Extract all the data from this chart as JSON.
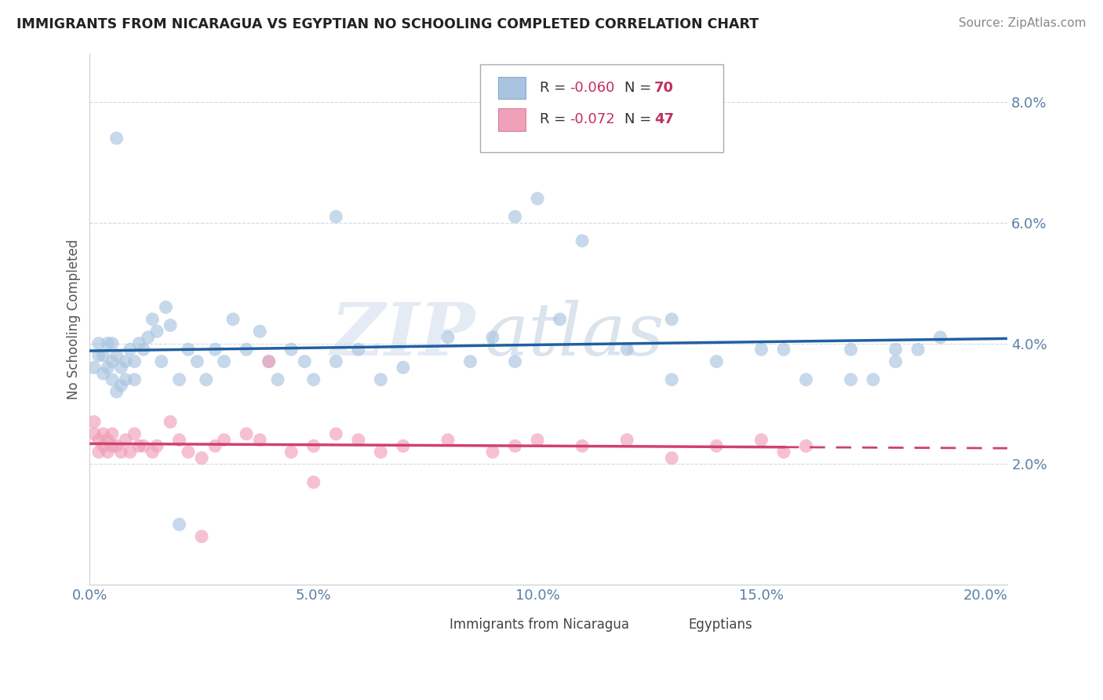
{
  "title": "IMMIGRANTS FROM NICARAGUA VS EGYPTIAN NO SCHOOLING COMPLETED CORRELATION CHART",
  "source": "Source: ZipAtlas.com",
  "ylabel": "No Schooling Completed",
  "xlim": [
    0.0,
    0.205
  ],
  "ylim": [
    0.0,
    0.088
  ],
  "xticks": [
    0.0,
    0.05,
    0.1,
    0.15,
    0.2
  ],
  "xtick_labels": [
    "0.0%",
    "5.0%",
    "10.0%",
    "15.0%",
    "20.0%"
  ],
  "yticks": [
    0.0,
    0.02,
    0.04,
    0.06,
    0.08
  ],
  "ytick_labels": [
    "",
    "2.0%",
    "4.0%",
    "6.0%",
    "8.0%"
  ],
  "nicaragua_color": "#a8c4e0",
  "nicaraguan_line_color": "#2060a0",
  "egyptian_color": "#f0a0b8",
  "egyptian_line_color": "#d04070",
  "watermark_zip": "ZIP",
  "watermark_atlas": "atlas",
  "nicaragua_x": [
    0.001,
    0.002,
    0.002,
    0.003,
    0.003,
    0.004,
    0.004,
    0.005,
    0.005,
    0.005,
    0.006,
    0.006,
    0.007,
    0.007,
    0.008,
    0.008,
    0.009,
    0.01,
    0.01,
    0.011,
    0.012,
    0.013,
    0.014,
    0.015,
    0.016,
    0.017,
    0.018,
    0.02,
    0.022,
    0.024,
    0.026,
    0.028,
    0.03,
    0.032,
    0.035,
    0.038,
    0.04,
    0.042,
    0.045,
    0.048,
    0.05,
    0.055,
    0.06,
    0.065,
    0.07,
    0.08,
    0.085,
    0.09,
    0.095,
    0.1,
    0.105,
    0.11,
    0.12,
    0.13,
    0.14,
    0.15,
    0.16,
    0.17,
    0.18,
    0.19,
    0.155,
    0.17,
    0.18,
    0.185,
    0.13,
    0.095,
    0.055,
    0.02,
    0.175,
    0.006
  ],
  "nicaragua_y": [
    0.036,
    0.038,
    0.04,
    0.035,
    0.038,
    0.04,
    0.036,
    0.034,
    0.037,
    0.04,
    0.032,
    0.038,
    0.036,
    0.033,
    0.037,
    0.034,
    0.039,
    0.037,
    0.034,
    0.04,
    0.039,
    0.041,
    0.044,
    0.042,
    0.037,
    0.046,
    0.043,
    0.034,
    0.039,
    0.037,
    0.034,
    0.039,
    0.037,
    0.044,
    0.039,
    0.042,
    0.037,
    0.034,
    0.039,
    0.037,
    0.034,
    0.037,
    0.039,
    0.034,
    0.036,
    0.041,
    0.037,
    0.041,
    0.037,
    0.064,
    0.044,
    0.057,
    0.039,
    0.034,
    0.037,
    0.039,
    0.034,
    0.039,
    0.039,
    0.041,
    0.039,
    0.034,
    0.037,
    0.039,
    0.044,
    0.061,
    0.061,
    0.01,
    0.034,
    0.074
  ],
  "egyptian_x": [
    0.001,
    0.001,
    0.002,
    0.002,
    0.003,
    0.003,
    0.004,
    0.004,
    0.005,
    0.005,
    0.006,
    0.007,
    0.008,
    0.009,
    0.01,
    0.011,
    0.012,
    0.014,
    0.015,
    0.018,
    0.02,
    0.022,
    0.025,
    0.028,
    0.03,
    0.035,
    0.038,
    0.04,
    0.045,
    0.05,
    0.055,
    0.06,
    0.065,
    0.07,
    0.08,
    0.09,
    0.095,
    0.1,
    0.11,
    0.12,
    0.13,
    0.14,
    0.15,
    0.155,
    0.16,
    0.025,
    0.05
  ],
  "egyptian_y": [
    0.027,
    0.025,
    0.024,
    0.022,
    0.025,
    0.023,
    0.024,
    0.022,
    0.025,
    0.023,
    0.023,
    0.022,
    0.024,
    0.022,
    0.025,
    0.023,
    0.023,
    0.022,
    0.023,
    0.027,
    0.024,
    0.022,
    0.021,
    0.023,
    0.024,
    0.025,
    0.024,
    0.037,
    0.022,
    0.023,
    0.025,
    0.024,
    0.022,
    0.023,
    0.024,
    0.022,
    0.023,
    0.024,
    0.023,
    0.024,
    0.021,
    0.023,
    0.024,
    0.022,
    0.023,
    0.008,
    0.017
  ]
}
